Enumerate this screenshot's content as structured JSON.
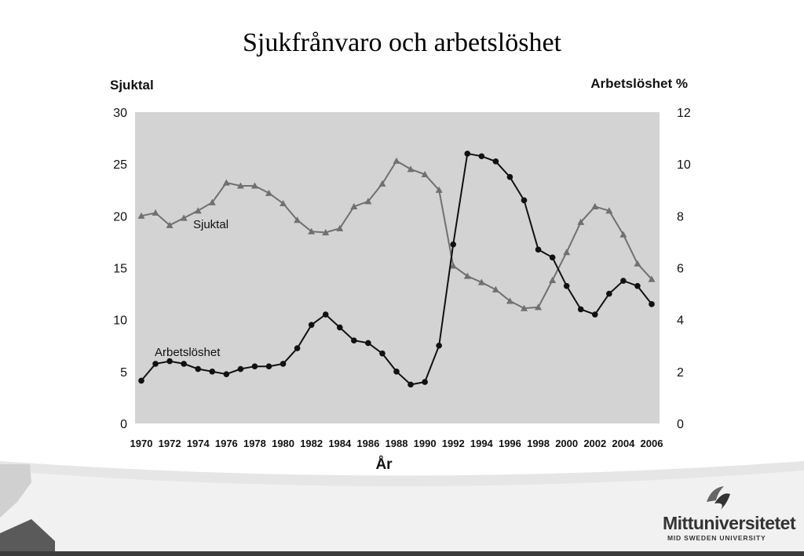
{
  "slide": {
    "title": "Sjukfrånvaro och arbetslöshet"
  },
  "chart_data": {
    "type": "line",
    "title": "Sjukfrånvaro och arbetslöshet",
    "xlabel": "År",
    "ylabel_left": "Sjuktal",
    "ylabel_right": "Arbetslöshet %",
    "ylim_left": [
      0,
      30
    ],
    "ylim_right": [
      0,
      12
    ],
    "left_ticks": [
      "0",
      "5",
      "10",
      "15",
      "20",
      "25",
      "30"
    ],
    "right_ticks": [
      "0",
      "2",
      "4",
      "6",
      "8",
      "10",
      "12"
    ],
    "x_ticks": [
      "1970",
      "1972",
      "1974",
      "1976",
      "1978",
      "1980",
      "1982",
      "1984",
      "1986",
      "1988",
      "1990",
      "1992",
      "1994",
      "1996",
      "1998",
      "2000",
      "2002",
      "2004",
      "2006"
    ],
    "x": [
      1970,
      1971,
      1972,
      1973,
      1974,
      1975,
      1976,
      1977,
      1978,
      1979,
      1980,
      1981,
      1982,
      1983,
      1984,
      1985,
      1986,
      1987,
      1988,
      1989,
      1990,
      1991,
      1992,
      1993,
      1994,
      1995,
      1996,
      1997,
      1998,
      1999,
      2000,
      2001,
      2002,
      2003,
      2004,
      2005,
      2006
    ],
    "series": [
      {
        "name": "Sjuktal",
        "axis": "left",
        "marker": "triangle",
        "color": "#707070",
        "values": [
          20.0,
          20.3,
          19.1,
          19.8,
          20.5,
          21.3,
          23.2,
          22.9,
          22.9,
          22.2,
          21.2,
          19.6,
          18.5,
          18.4,
          18.8,
          20.9,
          21.4,
          23.1,
          25.3,
          24.5,
          24.0,
          22.5,
          15.2,
          14.2,
          13.6,
          12.9,
          11.8,
          11.1,
          11.2,
          13.8,
          16.5,
          19.4,
          20.9,
          20.5,
          18.2,
          15.4,
          13.9
        ]
      },
      {
        "name": "Arbetslöshet",
        "axis": "right",
        "marker": "circle",
        "color": "#111111",
        "values": [
          1.65,
          2.3,
          2.4,
          2.3,
          2.1,
          2.0,
          1.9,
          2.1,
          2.2,
          2.2,
          2.3,
          2.9,
          3.8,
          4.2,
          3.7,
          3.2,
          3.1,
          2.7,
          2.0,
          1.5,
          1.6,
          3.0,
          6.9,
          10.4,
          10.3,
          10.1,
          9.5,
          8.6,
          6.7,
          6.4,
          5.3,
          4.4,
          4.2,
          5.0,
          5.5,
          5.3,
          4.6
        ]
      }
    ],
    "annotations": [
      {
        "text": "Sjuktal",
        "series": "Sjuktal"
      },
      {
        "text": "Arbetslöshet",
        "series": "Arbetslöshet"
      }
    ]
  },
  "logo": {
    "name": "Mittuniversitetet",
    "subtitle": "MID SWEDEN UNIVERSITY"
  }
}
